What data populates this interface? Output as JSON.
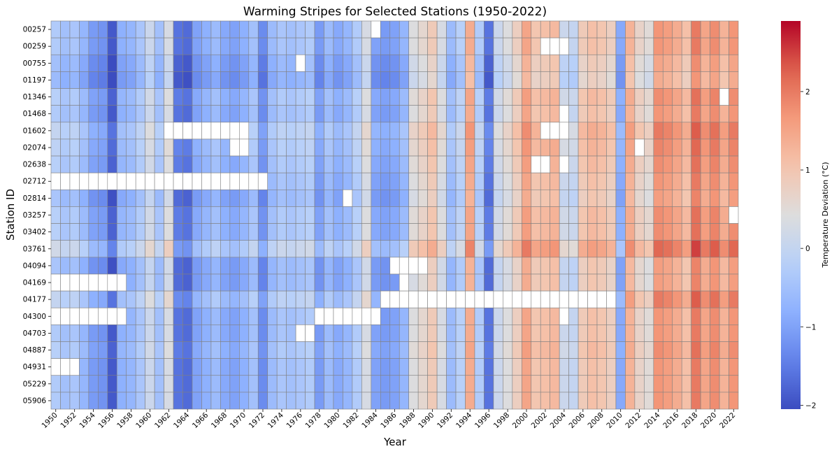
{
  "chart_data": {
    "type": "heatmap",
    "title": "Warming Stripes for Selected Stations (1950-2022)",
    "xlabel": "Year",
    "ylabel": "Station ID",
    "colorbar_label": "Temperature Deviation (°C)",
    "colorbar_ticks": [
      -2,
      -1,
      0,
      1,
      2
    ],
    "colorbar_range": [
      -2.05,
      2.9
    ],
    "colormap": "coolwarm",
    "missing_color": "#ffffff",
    "years": [
      1950,
      1951,
      1952,
      1953,
      1954,
      1955,
      1956,
      1957,
      1958,
      1959,
      1960,
      1961,
      1962,
      1963,
      1964,
      1965,
      1966,
      1967,
      1968,
      1969,
      1970,
      1971,
      1972,
      1973,
      1974,
      1975,
      1976,
      1977,
      1978,
      1979,
      1980,
      1981,
      1982,
      1983,
      1984,
      1985,
      1986,
      1987,
      1988,
      1989,
      1990,
      1991,
      1992,
      1993,
      1994,
      1995,
      1996,
      1997,
      1998,
      1999,
      2000,
      2001,
      2002,
      2003,
      2004,
      2005,
      2006,
      2007,
      2008,
      2009,
      2010,
      2011,
      2012,
      2013,
      2014,
      2015,
      2016,
      2017,
      2018,
      2019,
      2020,
      2021,
      2022
    ],
    "year_tick_labels": [
      "1950",
      "1952",
      "1954",
      "1956",
      "1958",
      "1960",
      "1962",
      "1964",
      "1966",
      "1968",
      "1970",
      "1972",
      "1974",
      "1976",
      "1978",
      "1980",
      "1982",
      "1984",
      "1986",
      "1988",
      "1990",
      "1992",
      "1994",
      "1996",
      "1998",
      "2000",
      "2002",
      "2004",
      "2006",
      "2008",
      "2010",
      "2012",
      "2014",
      "2016",
      "2018",
      "2020",
      "2022"
    ],
    "stations": [
      "00257",
      "00259",
      "00755",
      "01197",
      "01346",
      "01468",
      "01602",
      "02074",
      "02638",
      "02712",
      "02814",
      "03257",
      "03402",
      "03761",
      "04094",
      "04169",
      "04177",
      "04300",
      "04703",
      "04887",
      "04931",
      "05229",
      "05906"
    ],
    "base_pattern": [
      -0.3,
      -0.5,
      -0.4,
      -0.7,
      -1.1,
      -1.2,
      -1.9,
      -0.8,
      -0.7,
      -0.4,
      0.1,
      -0.5,
      0.3,
      -1.6,
      -1.7,
      -1.0,
      -0.8,
      -0.6,
      -0.9,
      -1.0,
      -0.8,
      -0.5,
      -1.3,
      -0.6,
      -0.4,
      -0.5,
      -0.4,
      -0.3,
      -1.1,
      -0.6,
      -0.9,
      -0.7,
      -0.3,
      0.3,
      -1.0,
      -1.1,
      -1.0,
      -0.7,
      0.4,
      0.6,
      0.9,
      0.3,
      -0.6,
      -0.2,
      1.4,
      -0.3,
      -1.6,
      0.1,
      0.4,
      0.8,
      1.5,
      1.0,
      1.1,
      1.2,
      0.1,
      0.0,
      0.9,
      1.1,
      1.0,
      0.8,
      -0.9,
      1.3,
      0.7,
      0.5,
      1.7,
      1.6,
      1.4,
      1.1,
      2.0,
      1.5,
      1.8,
      1.3,
      1.7
    ],
    "station_offsets": [
      0.0,
      0.0,
      -0.2,
      -0.3,
      0.1,
      0.0,
      0.3,
      0.2,
      0.1,
      0.0,
      -0.1,
      0.1,
      0.1,
      0.5,
      -0.1,
      -0.1,
      0.3,
      0.0,
      0.0,
      0.1,
      0.0,
      0.0,
      0.0
    ],
    "missing": [
      {
        "station": "00257",
        "from": 1984,
        "to": 1984
      },
      {
        "station": "00259",
        "from": 2002,
        "to": 2004
      },
      {
        "station": "00755",
        "from": 1976,
        "to": 1976
      },
      {
        "station": "01346",
        "from": 2021,
        "to": 2021
      },
      {
        "station": "01468",
        "from": 2004,
        "to": 2004
      },
      {
        "station": "01602",
        "from": 1962,
        "to": 1970
      },
      {
        "station": "01602",
        "from": 2002,
        "to": 2004
      },
      {
        "station": "02074",
        "from": 1969,
        "to": 1970
      },
      {
        "station": "02074",
        "from": 2012,
        "to": 2012
      },
      {
        "station": "02638",
        "from": 2001,
        "to": 2002
      },
      {
        "station": "02638",
        "from": 2004,
        "to": 2004
      },
      {
        "station": "02712",
        "from": 1950,
        "to": 1972
      },
      {
        "station": "02814",
        "from": 1981,
        "to": 1981
      },
      {
        "station": "03257",
        "from": 2022,
        "to": 2022
      },
      {
        "station": "04094",
        "from": 1986,
        "to": 1989
      },
      {
        "station": "04169",
        "from": 1950,
        "to": 1957
      },
      {
        "station": "04169",
        "from": 1987,
        "to": 1987
      },
      {
        "station": "04177",
        "from": 1985,
        "to": 2009
      },
      {
        "station": "04300",
        "from": 1950,
        "to": 1957
      },
      {
        "station": "04300",
        "from": 1978,
        "to": 1984
      },
      {
        "station": "04300",
        "from": 2004,
        "to": 2004
      },
      {
        "station": "04703",
        "from": 1976,
        "to": 1977
      },
      {
        "station": "04931",
        "from": 1950,
        "to": 1952
      }
    ]
  }
}
